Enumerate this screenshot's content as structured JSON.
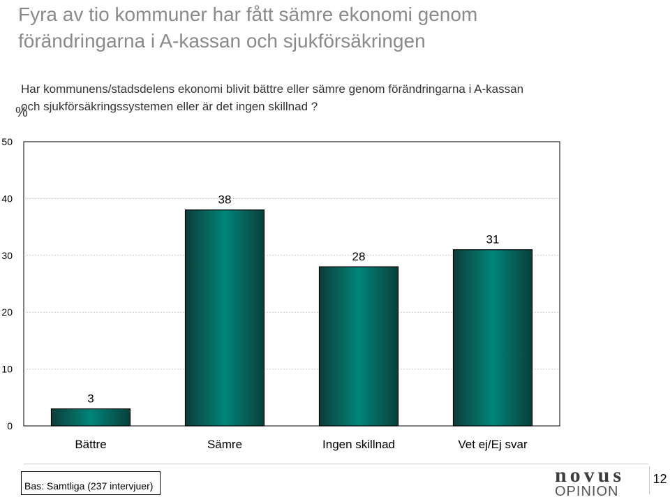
{
  "slide": {
    "title_line1": "Fyra av tio kommuner har fått sämre ekonomi genom",
    "title_line2": "förändringarna i A-kassan och sjukförsäkringen",
    "question_line1": "Har kommunens/stadsdelens ekonomi blivit bättre eller sämre genom förändringarna i A-kassan",
    "question_line2": "och sjukförsäkringssystemen eller är det ingen skillnad ?",
    "footer_base": "Bas: Samtliga (237 intervjuer)",
    "logo_line1": "novus",
    "logo_line2": "OPINION",
    "page_number": "12"
  },
  "chart_data": {
    "type": "bar",
    "title": "",
    "ylabel": "%",
    "xlabel": "",
    "categories": [
      "Bättre",
      "Sämre",
      "Ingen skillnad",
      "Vet ej/Ej svar"
    ],
    "values": [
      3,
      38,
      28,
      31
    ],
    "ylim": [
      0,
      50
    ],
    "yticks": [
      0,
      10,
      20,
      30,
      40,
      50
    ],
    "grid": true,
    "bar_color": "#00857a",
    "bar_dark": "#0a3f3a"
  }
}
